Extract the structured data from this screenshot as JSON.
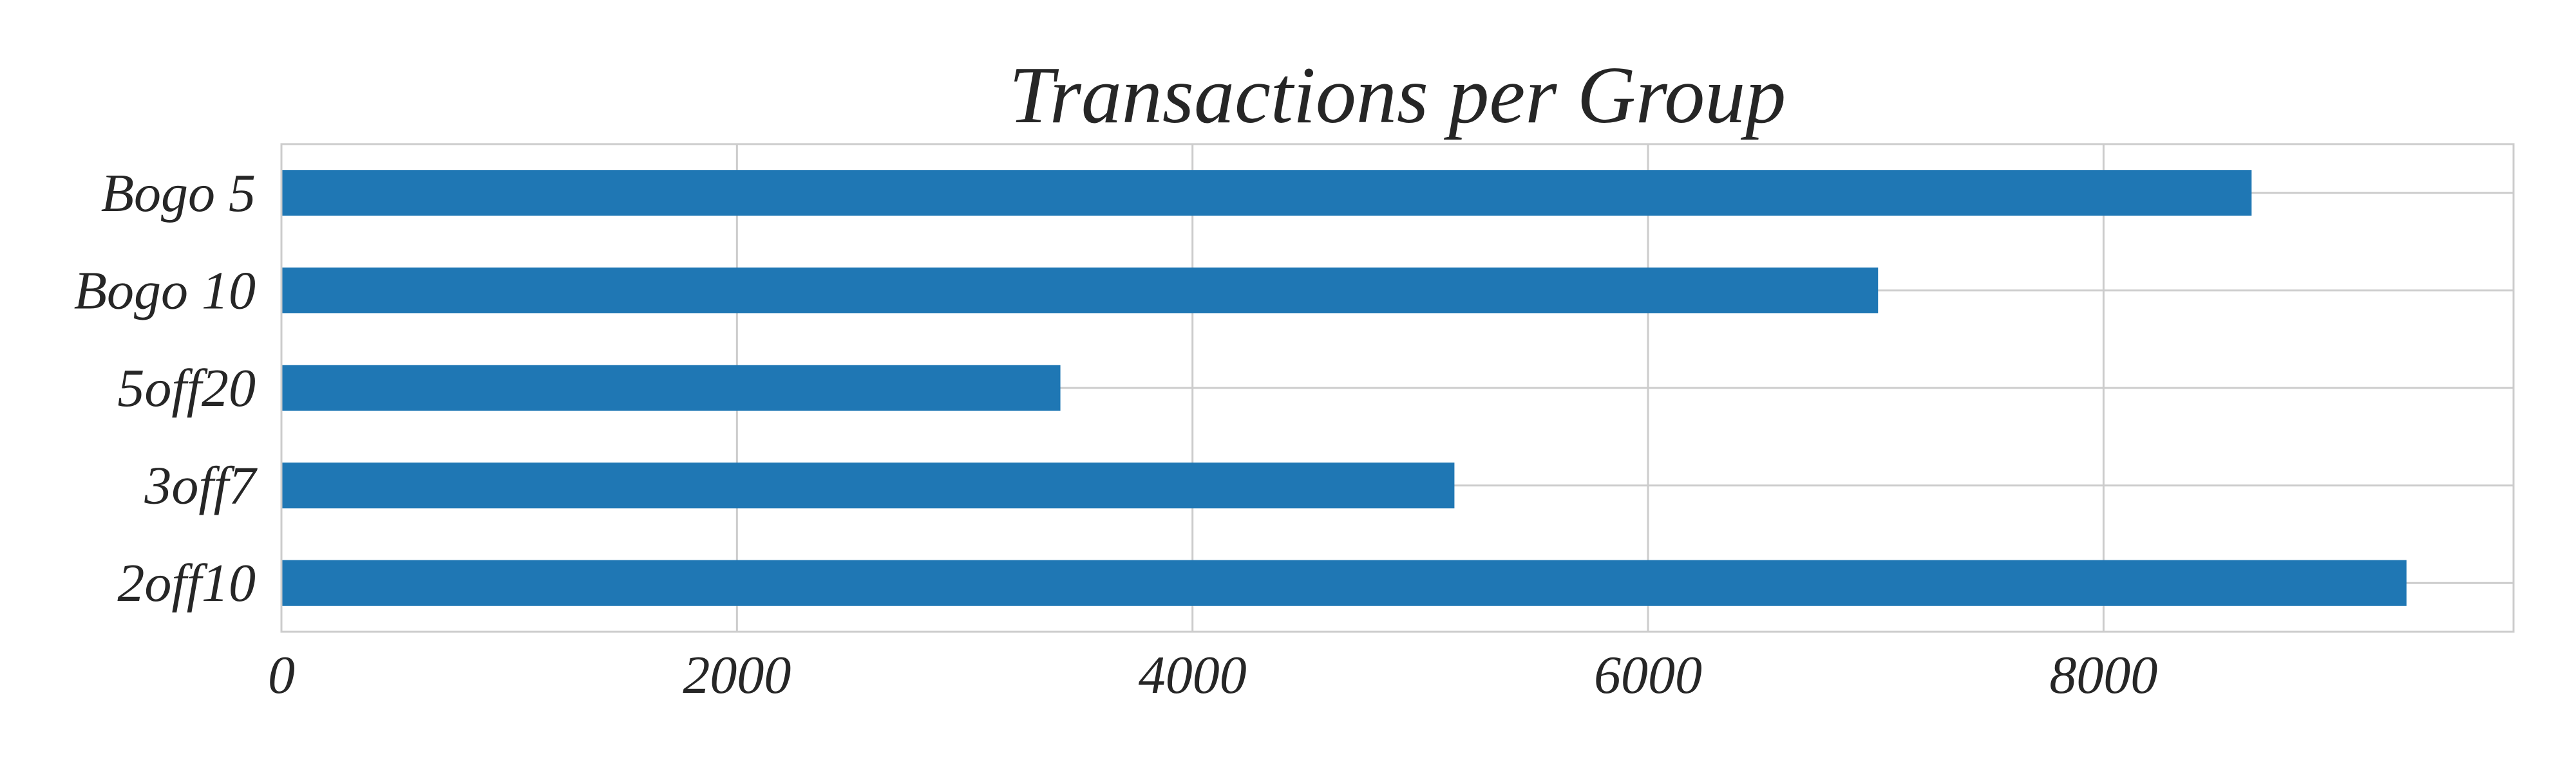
{
  "chart_data": {
    "type": "bar",
    "orientation": "horizontal",
    "title": "Transactions per Group",
    "xlabel": "",
    "ylabel": "",
    "categories": [
      "Bogo 5",
      "Bogo 10",
      "5off20",
      "3off7",
      "2off10"
    ],
    "values": [
      8650,
      7010,
      3420,
      5150,
      9330
    ],
    "xlim": [
      0,
      9800
    ],
    "xticks": [
      0,
      2000,
      4000,
      6000,
      8000
    ],
    "xtick_labels": [
      "0",
      "2000",
      "4000",
      "6000",
      "8000"
    ],
    "grid": true,
    "bar_color": "#1f77b4",
    "grid_color": "#cccccc"
  }
}
